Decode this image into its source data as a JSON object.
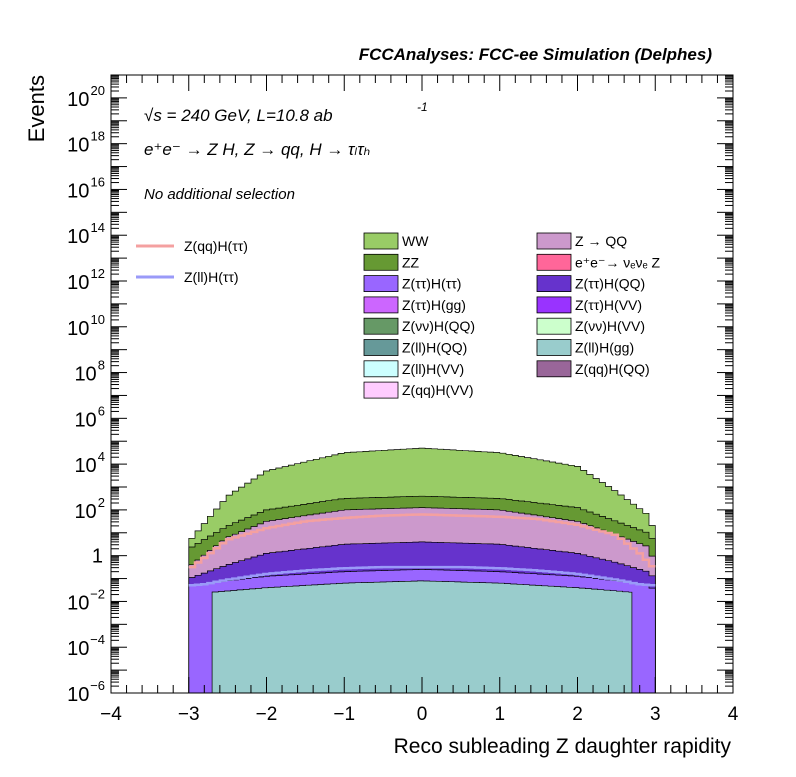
{
  "chart_data": {
    "type": "area",
    "title": "FCCAnalyses: FCC-ee Simulation (Delphes)",
    "xlabel": "Reco subleading Z daughter rapidity",
    "ylabel": "Events",
    "xlim": [
      -4,
      4
    ],
    "ylim_log10": [
      -6,
      21
    ],
    "log_y": true,
    "x_ticks": [
      -4,
      -3,
      -2,
      -1,
      0,
      1,
      2,
      3,
      4
    ],
    "x_tick_labels": [
      "−4",
      "−3",
      "−2",
      "−1",
      "0",
      "1",
      "2",
      "3",
      "4"
    ],
    "y_ticks": [
      {
        "base": "10",
        "exp": "20",
        "value": 20
      },
      {
        "base": "10",
        "exp": "18",
        "value": 18
      },
      {
        "base": "10",
        "exp": "16",
        "value": 16
      },
      {
        "base": "10",
        "exp": "14",
        "value": 14
      },
      {
        "base": "10",
        "exp": "12",
        "value": 12
      },
      {
        "base": "10",
        "exp": "10",
        "value": 10
      },
      {
        "base": "10",
        "exp": "8",
        "value": 8
      },
      {
        "base": "10",
        "exp": "6",
        "value": 6
      },
      {
        "base": "10",
        "exp": "4",
        "value": 4
      },
      {
        "base": "10",
        "exp": "2",
        "value": 2
      },
      {
        "base": "1",
        "exp": "",
        "value": 0
      },
      {
        "base": "10",
        "exp": "−2",
        "value": -2
      },
      {
        "base": "10",
        "exp": "−4",
        "value": -4
      },
      {
        "base": "10",
        "exp": "−6",
        "value": -6
      }
    ],
    "annotations": {
      "energy": "√s = 240 GeV, L=10.8 ab",
      "energy_sup": "-1",
      "process": "e⁺e⁻ → Z H, Z → qq, H → τₗτₕ",
      "selection": "No additional selection"
    },
    "signal_legend": [
      {
        "name": "Z(qq)H(ττ)",
        "color": "#f4a0a0"
      },
      {
        "name": "Z(ll)H(ττ)",
        "color": "#9a9af8"
      }
    ],
    "background_legend": [
      {
        "name": "WW",
        "color": "#99cc66"
      },
      {
        "name": "Z → QQ",
        "color": "#cc99cc"
      },
      {
        "name": "ZZ",
        "color": "#669933"
      },
      {
        "name": "e⁺e⁻→ νₑνₑ Z",
        "color": "#ff6699"
      },
      {
        "name": "Z(ττ)H(ττ)",
        "color": "#9966ff"
      },
      {
        "name": "Z(ττ)H(QQ)",
        "color": "#6633cc"
      },
      {
        "name": "Z(ττ)H(gg)",
        "color": "#cc66ff"
      },
      {
        "name": "Z(ττ)H(VV)",
        "color": "#9933ff"
      },
      {
        "name": "Z(νν)H(QQ)",
        "color": "#669966"
      },
      {
        "name": "Z(νν)H(VV)",
        "color": "#ccffcc"
      },
      {
        "name": "Z(ll)H(QQ)",
        "color": "#669999"
      },
      {
        "name": "Z(ll)H(gg)",
        "color": "#99cccc"
      },
      {
        "name": "Z(ll)H(VV)",
        "color": "#ccffff"
      },
      {
        "name": "Z(qq)H(QQ)",
        "color": "#996699"
      },
      {
        "name": "Z(qq)H(VV)",
        "color": "#ffccff"
      }
    ],
    "stack_envelopes_log10": [
      {
        "name": "WW",
        "color": "#99cc66",
        "edge_x": [
          -3.0,
          -2.5,
          -2.0,
          -1.0,
          0.0,
          1.0,
          2.0,
          2.5,
          2.9,
          3.0
        ],
        "edge_y": [
          0.6,
          2.6,
          3.7,
          4.5,
          4.7,
          4.5,
          3.9,
          2.8,
          1.8,
          1.0
        ]
      },
      {
        "name": "ZZ",
        "color": "#669933",
        "edge_x": [
          -3.0,
          -2.5,
          -2.0,
          -1.0,
          0.0,
          1.0,
          2.0,
          2.5,
          2.9,
          3.0
        ],
        "edge_y": [
          0.3,
          1.3,
          2.0,
          2.5,
          2.6,
          2.5,
          2.1,
          1.5,
          1.0,
          0.6
        ]
      },
      {
        "name": "Z → QQ",
        "color": "#cc99cc",
        "edge_x": [
          -3.0,
          -2.5,
          -2.0,
          -1.0,
          0.0,
          1.0,
          2.0,
          2.5,
          2.9,
          3.0
        ],
        "edge_y": [
          -0.5,
          0.8,
          1.5,
          2.0,
          2.1,
          2.0,
          1.5,
          0.9,
          0.4,
          -0.3
        ]
      },
      {
        "name": "Z(ττ)H(QQ)",
        "color": "#6633cc",
        "edge_x": [
          -3.0,
          -2.5,
          -2.0,
          -1.0,
          0.0,
          1.0,
          2.0,
          2.5,
          2.9,
          3.0
        ],
        "edge_y": [
          -1.0,
          -0.4,
          0.1,
          0.5,
          0.6,
          0.5,
          0.1,
          -0.3,
          -0.7,
          -1.0
        ]
      },
      {
        "name": "Z(ττ)H(ττ)",
        "color": "#9966ff",
        "edge_x": [
          -3.0,
          -2.5,
          -2.0,
          -1.0,
          0.0,
          1.0,
          2.0,
          2.5,
          2.9,
          3.0
        ],
        "edge_y": [
          -1.3,
          -1.1,
          -0.9,
          -0.7,
          -0.6,
          -0.7,
          -0.9,
          -1.1,
          -1.3,
          -1.5
        ]
      },
      {
        "name": "Z(ll)H(gg)",
        "color": "#99cccc",
        "edge_x": [
          -2.7,
          -2.0,
          -1.0,
          0.0,
          1.0,
          2.0,
          2.7
        ],
        "edge_y": [
          -1.6,
          -1.4,
          -1.2,
          -1.1,
          -1.2,
          -1.4,
          -1.6
        ]
      }
    ],
    "signal_lines_log10": [
      {
        "name": "Z(qq)H(ττ)",
        "color": "#f4a0a0",
        "x": [
          -3.0,
          -2.8,
          -2.5,
          -2.0,
          -1.5,
          -1.0,
          -0.5,
          0.0,
          0.5,
          1.0,
          1.5,
          2.0,
          2.5,
          2.8,
          3.0
        ],
        "y": [
          -0.6,
          -0.1,
          0.7,
          1.2,
          1.5,
          1.65,
          1.75,
          1.8,
          1.75,
          1.7,
          1.6,
          1.35,
          0.9,
          0.1,
          -0.6
        ]
      },
      {
        "name": "Z(ll)H(ττ)",
        "color": "#9a9af8",
        "x": [
          -3.0,
          -2.8,
          -2.5,
          -2.0,
          -1.5,
          -1.0,
          -0.5,
          0.0,
          0.5,
          1.0,
          1.5,
          2.0,
          2.5,
          2.8,
          3.0
        ],
        "y": [
          -1.3,
          -1.25,
          -1.05,
          -0.8,
          -0.65,
          -0.55,
          -0.5,
          -0.5,
          -0.5,
          -0.55,
          -0.65,
          -0.8,
          -1.05,
          -1.25,
          -1.3
        ]
      }
    ]
  }
}
